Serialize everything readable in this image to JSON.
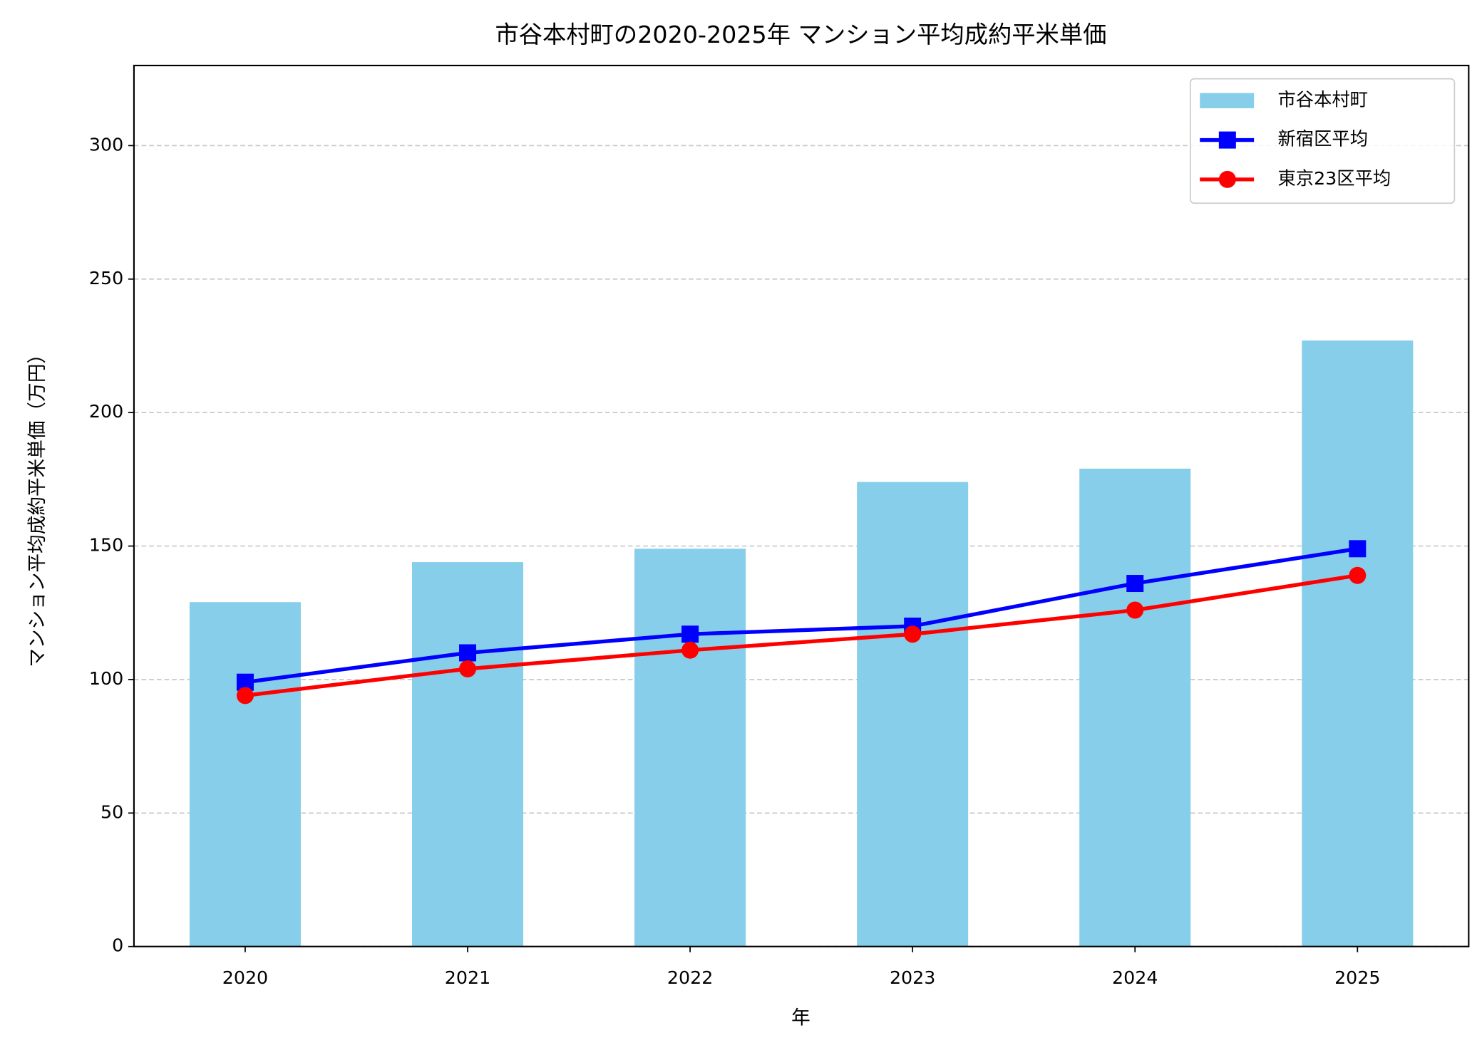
{
  "chart_data": {
    "type": "bar",
    "title": "市谷本村町の2020-2025年 マンション平均成約平米単価",
    "x_label": "年",
    "y_label": "マンション平均成約平米単価（万円）",
    "categories": [
      "2020",
      "2021",
      "2022",
      "2023",
      "2024",
      "2025"
    ],
    "series": [
      {
        "name": "市谷本村町",
        "type": "bar",
        "color": "#87ceeb",
        "values": [
          129,
          144,
          149,
          174,
          179,
          227
        ]
      },
      {
        "name": "新宿区平均",
        "type": "line",
        "marker": "square",
        "color": "#0000ff",
        "values": [
          99,
          110,
          117,
          120,
          136,
          149
        ]
      },
      {
        "name": "東京23区平均",
        "type": "line",
        "marker": "circle",
        "color": "#ff0000",
        "values": [
          94,
          104,
          111,
          117,
          126,
          139
        ]
      }
    ],
    "ylim": [
      0,
      330
    ],
    "yticks": [
      0,
      50,
      100,
      150,
      200,
      250,
      300
    ],
    "grid": true,
    "legend": "upper right"
  }
}
